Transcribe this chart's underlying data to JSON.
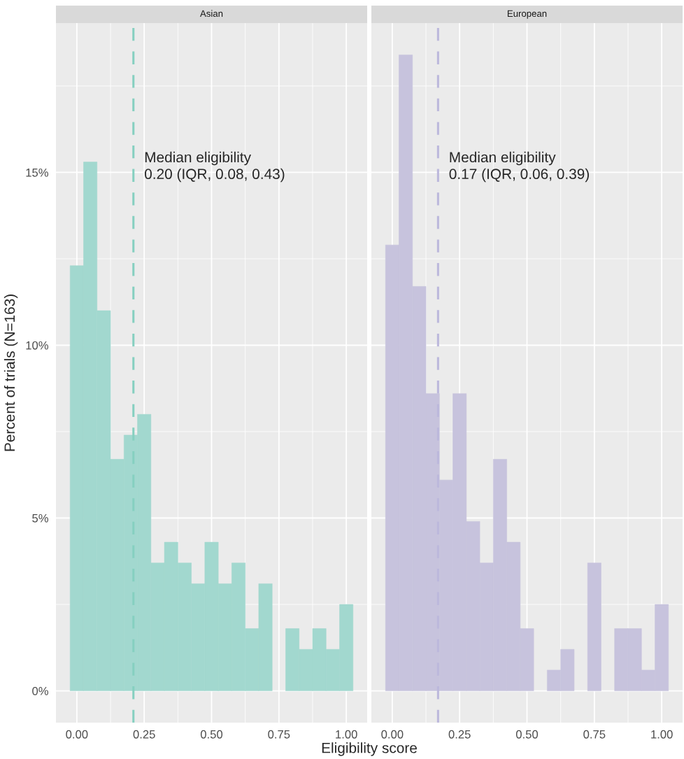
{
  "chart_data": [
    {
      "type": "histogram",
      "title": "Asian",
      "xlabel": "Eligibility score",
      "ylabel": "Percent of trials (N=163)",
      "bins": [
        -0.025,
        0.025,
        0.075,
        0.125,
        0.175,
        0.225,
        0.275,
        0.325,
        0.375,
        0.425,
        0.475,
        0.525,
        0.575,
        0.625,
        0.675,
        0.725,
        0.775,
        0.825,
        0.875,
        0.925,
        0.975,
        1.025
      ],
      "values": [
        12.3,
        15.3,
        11.0,
        6.7,
        7.4,
        8.0,
        3.7,
        4.3,
        3.7,
        3.1,
        4.3,
        3.1,
        3.7,
        1.8,
        3.1,
        0,
        1.8,
        1.2,
        1.8,
        1.2,
        2.5
      ],
      "color": "#a2d8cf",
      "xlim": [
        -0.0775,
        1.0775
      ],
      "xticks": [
        {
          "value": 0,
          "label": "0.00"
        },
        {
          "value": 0.25,
          "label": "0.25"
        },
        {
          "value": 0.5,
          "label": "0.50"
        },
        {
          "value": 0.75,
          "label": "0.75"
        },
        {
          "value": 1,
          "label": "1.00"
        }
      ],
      "ylim": [
        -0.92,
        19.32
      ],
      "yticks": [
        {
          "value": 0,
          "label": "0%"
        },
        {
          "value": 5,
          "label": "5%"
        },
        {
          "value": 10,
          "label": "10%"
        },
        {
          "value": 15,
          "label": "15%"
        }
      ],
      "ref_lines": [
        {
          "axis": "x",
          "value": 0.21,
          "label": "Median eligibility\n0.20 (IQR, 0.08, 0.43)",
          "color": "#86d0c0",
          "line_style": "dashed"
        }
      ],
      "grid": true
    },
    {
      "type": "histogram",
      "title": "European",
      "bins": [
        -0.025,
        0.025,
        0.075,
        0.125,
        0.175,
        0.225,
        0.275,
        0.325,
        0.375,
        0.425,
        0.475,
        0.525,
        0.575,
        0.625,
        0.675,
        0.725,
        0.775,
        0.825,
        0.875,
        0.925,
        0.975,
        1.025
      ],
      "values": [
        12.9,
        18.4,
        11.7,
        8.6,
        6.1,
        8.6,
        4.9,
        3.7,
        6.7,
        4.3,
        1.8,
        0,
        0.6,
        1.2,
        0,
        3.7,
        0,
        1.8,
        1.8,
        0.6,
        2.5
      ],
      "color": "#c7c3dd",
      "xlim": [
        -0.0775,
        1.0775
      ],
      "xticks": [
        {
          "value": 0,
          "label": "0.00"
        },
        {
          "value": 0.25,
          "label": "0.25"
        },
        {
          "value": 0.5,
          "label": "0.50"
        },
        {
          "value": 0.75,
          "label": "0.75"
        },
        {
          "value": 1,
          "label": "1.00"
        }
      ],
      "ylim": [
        -0.92,
        19.32
      ],
      "yticks": [
        {
          "value": 0,
          "label": null
        },
        {
          "value": 5,
          "label": null
        },
        {
          "value": 10,
          "label": null
        },
        {
          "value": 15,
          "label": null
        }
      ],
      "ref_lines": [
        {
          "axis": "x",
          "value": 0.17,
          "label": "Median eligibility\n0.17 (IQR, 0.06, 0.39)",
          "color": "#bcb8dc",
          "line_style": "dashed"
        }
      ],
      "grid": true,
      "tick_labels": "x"
    }
  ]
}
